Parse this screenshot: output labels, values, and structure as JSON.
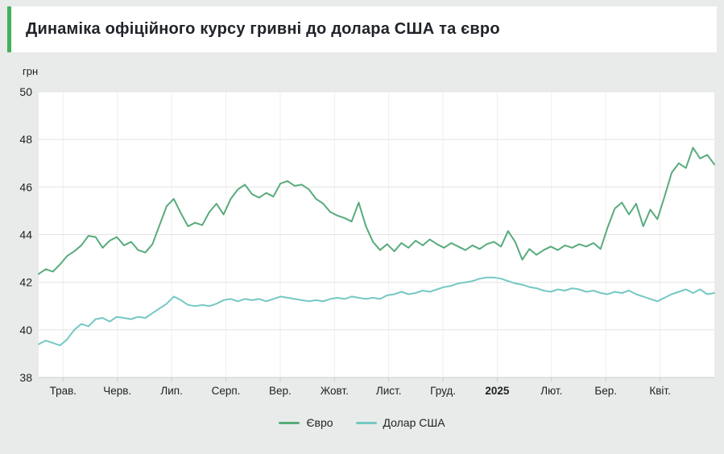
{
  "title": "Динаміка офіційного курсу гривні до долара США та євро",
  "accent_color": "#43b05c",
  "chart_data": {
    "type": "line",
    "title": "Динаміка офіційного курсу гривні до долара США та євро",
    "xlabel": "",
    "ylabel": "грн",
    "ylim": [
      38,
      50
    ],
    "yticks": [
      38,
      40,
      42,
      44,
      46,
      48,
      50
    ],
    "x_tick_labels": [
      "Трав.",
      "Черв.",
      "Лип.",
      "Серп.",
      "Вер.",
      "Жовт.",
      "Лист.",
      "Груд.",
      "2025",
      "Лют.",
      "Бер.",
      "Квіт."
    ],
    "bold_x_tick": "2025",
    "grid": true,
    "legend_position": "bottom",
    "plot_background": "#ffffff",
    "gridline_color": "#e2e4e3",
    "series": [
      {
        "name": "Євро",
        "color": "#58ab7c",
        "values": [
          42.35,
          42.55,
          42.45,
          42.75,
          43.1,
          43.3,
          43.55,
          43.95,
          43.9,
          43.45,
          43.75,
          43.9,
          43.55,
          43.7,
          43.35,
          43.25,
          43.6,
          44.4,
          45.2,
          45.5,
          44.9,
          44.35,
          44.5,
          44.4,
          44.95,
          45.3,
          44.85,
          45.5,
          45.9,
          46.1,
          45.7,
          45.55,
          45.75,
          45.6,
          46.15,
          46.25,
          46.05,
          46.1,
          45.9,
          45.5,
          45.3,
          44.95,
          44.8,
          44.7,
          44.55,
          45.35,
          44.35,
          43.7,
          43.35,
          43.6,
          43.3,
          43.65,
          43.45,
          43.75,
          43.55,
          43.8,
          43.6,
          43.45,
          43.65,
          43.5,
          43.35,
          43.55,
          43.4,
          43.6,
          43.7,
          43.5,
          44.15,
          43.7,
          42.95,
          43.4,
          43.15,
          43.35,
          43.5,
          43.35,
          43.55,
          43.45,
          43.6,
          43.5,
          43.65,
          43.4,
          44.3,
          45.1,
          45.35,
          44.85,
          45.3,
          44.35,
          45.05,
          44.65,
          45.6,
          46.6,
          47.0,
          46.8,
          47.65,
          47.2,
          47.35,
          46.95
        ]
      },
      {
        "name": "Долар США",
        "color": "#74c8c3",
        "values": [
          39.4,
          39.55,
          39.45,
          39.35,
          39.6,
          40.0,
          40.25,
          40.15,
          40.45,
          40.5,
          40.35,
          40.55,
          40.5,
          40.45,
          40.55,
          40.5,
          40.7,
          40.9,
          41.1,
          41.4,
          41.25,
          41.05,
          41.0,
          41.05,
          41.0,
          41.1,
          41.25,
          41.3,
          41.2,
          41.3,
          41.25,
          41.3,
          41.2,
          41.3,
          41.4,
          41.35,
          41.3,
          41.25,
          41.2,
          41.25,
          41.2,
          41.3,
          41.35,
          41.3,
          41.4,
          41.35,
          41.3,
          41.35,
          41.3,
          41.45,
          41.5,
          41.6,
          41.5,
          41.55,
          41.65,
          41.6,
          41.7,
          41.8,
          41.85,
          41.95,
          42.0,
          42.05,
          42.15,
          42.2,
          42.2,
          42.15,
          42.05,
          41.95,
          41.9,
          41.8,
          41.75,
          41.65,
          41.6,
          41.7,
          41.65,
          41.75,
          41.7,
          41.6,
          41.65,
          41.55,
          41.5,
          41.6,
          41.55,
          41.65,
          41.5,
          41.4,
          41.3,
          41.2,
          41.35,
          41.5,
          41.6,
          41.7,
          41.55,
          41.7,
          41.5,
          41.55
        ]
      }
    ]
  }
}
